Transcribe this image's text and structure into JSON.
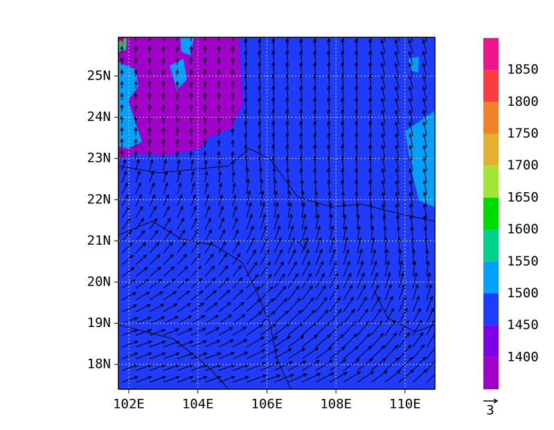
{
  "map": {
    "lon_labels": [
      "102E",
      "104E",
      "106E",
      "108E",
      "110E"
    ],
    "lat_labels": [
      "25N",
      "24N",
      "23N",
      "22N",
      "21N",
      "20N",
      "19N",
      "18N"
    ],
    "colorbar": {
      "labels": [
        1850,
        1800,
        1750,
        1700,
        1650,
        1600,
        1550,
        1500,
        1450,
        1400
      ],
      "colors": [
        "#f0148c",
        "#fa3c3c",
        "#f08228",
        "#e6af2d",
        "#a0e632",
        "#00dc00",
        "#00d28c",
        "#00a0ff",
        "#1e3cff",
        "#7d00e6",
        "#a000c8"
      ]
    },
    "vector_scale": "3"
  }
}
